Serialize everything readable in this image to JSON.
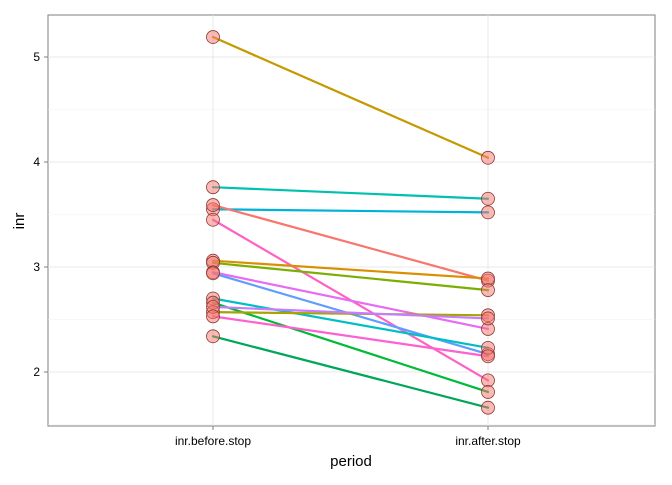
{
  "chart_data": {
    "type": "line",
    "xlabel": "period",
    "ylabel": "inr",
    "categories": [
      "inr.before.stop",
      "inr.after.stop"
    ],
    "ylim": [
      1.5,
      5.3
    ],
    "yticks": [
      2,
      3,
      4,
      5
    ],
    "grid": true,
    "series": [
      {
        "color": "#C49A00",
        "values": [
          5.19,
          4.04
        ]
      },
      {
        "color": "#00C0AF",
        "values": [
          3.76,
          3.65
        ]
      },
      {
        "color": "#00B2D8",
        "values": [
          3.55,
          3.52
        ]
      },
      {
        "color": "#F8766D",
        "values": [
          3.59,
          2.87
        ]
      },
      {
        "color": "#FF61C3",
        "values": [
          3.45,
          1.92
        ]
      },
      {
        "color": "#D89000",
        "values": [
          3.06,
          2.89
        ]
      },
      {
        "color": "#7CAE00",
        "values": [
          3.04,
          2.78
        ]
      },
      {
        "color": "#E76BF3",
        "values": [
          2.95,
          2.41
        ]
      },
      {
        "color": "#619CFF",
        "values": [
          2.94,
          2.17
        ]
      },
      {
        "color": "#00BFC4",
        "values": [
          2.7,
          2.23
        ]
      },
      {
        "color": "#00BA38",
        "values": [
          2.66,
          1.81
        ]
      },
      {
        "color": "#A3A500",
        "values": [
          2.57,
          2.54
        ]
      },
      {
        "color": "#C77CFF",
        "values": [
          2.62,
          2.51
        ]
      },
      {
        "color": "#FD61D1",
        "values": [
          2.53,
          2.15
        ]
      },
      {
        "color": "#00A65A",
        "values": [
          2.34,
          1.66
        ]
      }
    ],
    "point_color": "#F8766D"
  }
}
